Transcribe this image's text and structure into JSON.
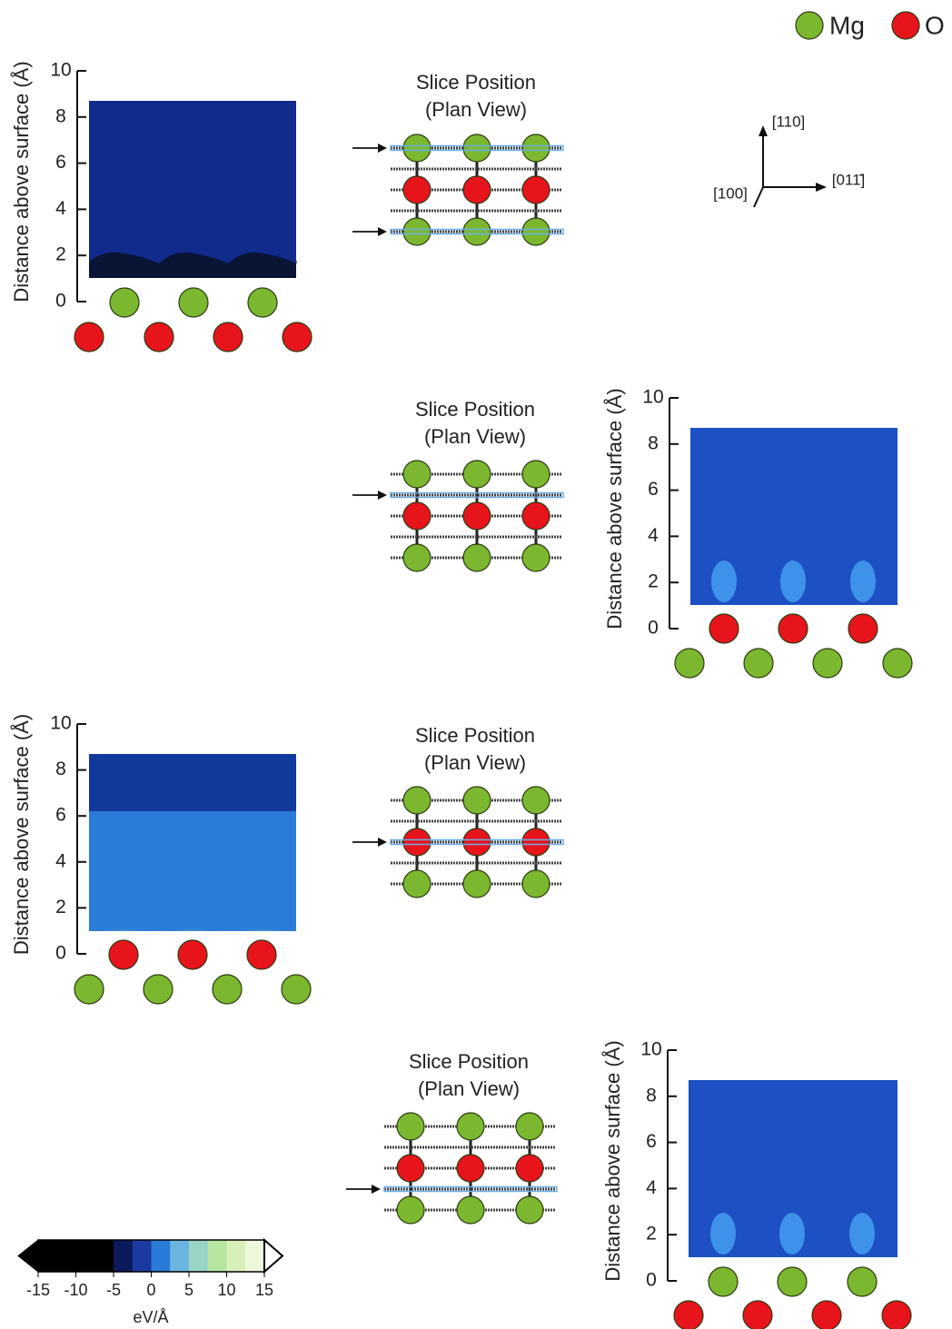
{
  "legend": [
    {
      "label": "Mg",
      "color": "#7cb82f"
    },
    {
      "label": "O",
      "color": "#e8141c"
    }
  ],
  "directions": [
    "[110]",
    "[100]",
    "[011̄]"
  ],
  "panels": [
    {
      "y_label": "Distance above surface (Å)",
      "ylim": [
        0,
        10
      ],
      "yticks": [
        0,
        2,
        4,
        6,
        8,
        10
      ],
      "slice_title": [
        "Slice Position",
        "(Plan View)"
      ]
    },
    {
      "y_label": "Distance above surface (Å)",
      "ylim": [
        0,
        10
      ],
      "yticks": [
        0,
        2,
        4,
        6,
        8,
        10
      ],
      "slice_title": [
        "Slice Position",
        "(Plan View)"
      ]
    },
    {
      "y_label": "Distance above surface (Å)",
      "ylim": [
        0,
        10
      ],
      "yticks": [
        0,
        2,
        4,
        6,
        8,
        10
      ],
      "slice_title": [
        "Slice Position",
        "(Plan View)"
      ]
    },
    {
      "y_label": "Distance above surface (Å)",
      "ylim": [
        0,
        10
      ],
      "yticks": [
        0,
        2,
        4,
        6,
        8,
        10
      ],
      "slice_title": [
        "Slice Position",
        "(Plan View)"
      ]
    }
  ],
  "colorbar": {
    "label": "eV/Å",
    "lim": [
      -15,
      15
    ],
    "ticks": [
      -15,
      -10,
      -5,
      0,
      5,
      10,
      15
    ],
    "colors": [
      "#000000",
      "#000000",
      "#000000",
      "#000000",
      "#0a1a5a",
      "#1a3aa0",
      "#2a7ad8",
      "#6ab4e0",
      "#9ad4c8",
      "#b8e6a0",
      "#d8f0b8",
      "#eef8dc"
    ]
  }
}
